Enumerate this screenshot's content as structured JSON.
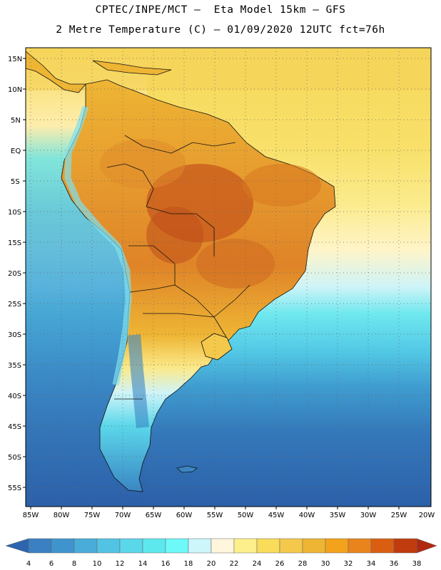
{
  "header": {
    "line1": "CPTEC/INPE/MCT –  Eta Model 15km – GFS",
    "line2": "2 Metre Temperature (C) – 01/09/2020 12UTC fct=76h"
  },
  "map": {
    "lat_labels": [
      "15N",
      "10N",
      "5N",
      "EQ",
      "5S",
      "10S",
      "15S",
      "20S",
      "25S",
      "30S",
      "35S",
      "40S",
      "45S",
      "50S",
      "55S"
    ],
    "lon_labels": [
      "85W",
      "80W",
      "75W",
      "70W",
      "65W",
      "60W",
      "55W",
      "50W",
      "45W",
      "40W",
      "35W",
      "30W",
      "25W",
      "20W"
    ]
  },
  "legend": {
    "labels": [
      "4",
      "6",
      "8",
      "10",
      "12",
      "14",
      "16",
      "18",
      "20",
      "22",
      "24",
      "26",
      "28",
      "30",
      "32",
      "34",
      "36",
      "38"
    ],
    "colors": [
      "#2c65ae",
      "#3a80c2",
      "#3f94cd",
      "#49acd9",
      "#53c3e3",
      "#5bd7ea",
      "#5de8ee",
      "#6ff8f8",
      "#cdf6fb",
      "#fff6dc",
      "#fdf08c",
      "#f8dc5a",
      "#f4c84a",
      "#eeb534",
      "#f3a21b",
      "#e9841d",
      "#da5e12",
      "#c03b0e",
      "#b0290e"
    ]
  },
  "colors": {
    "ocean_cold": "#2c65ae",
    "ocean_mid": "#3f94cd",
    "ocean_warm": "#5bd7ea",
    "land_hot": "#c8581c",
    "land_warm": "#eeb534",
    "tropic": "#f8dc5a"
  }
}
